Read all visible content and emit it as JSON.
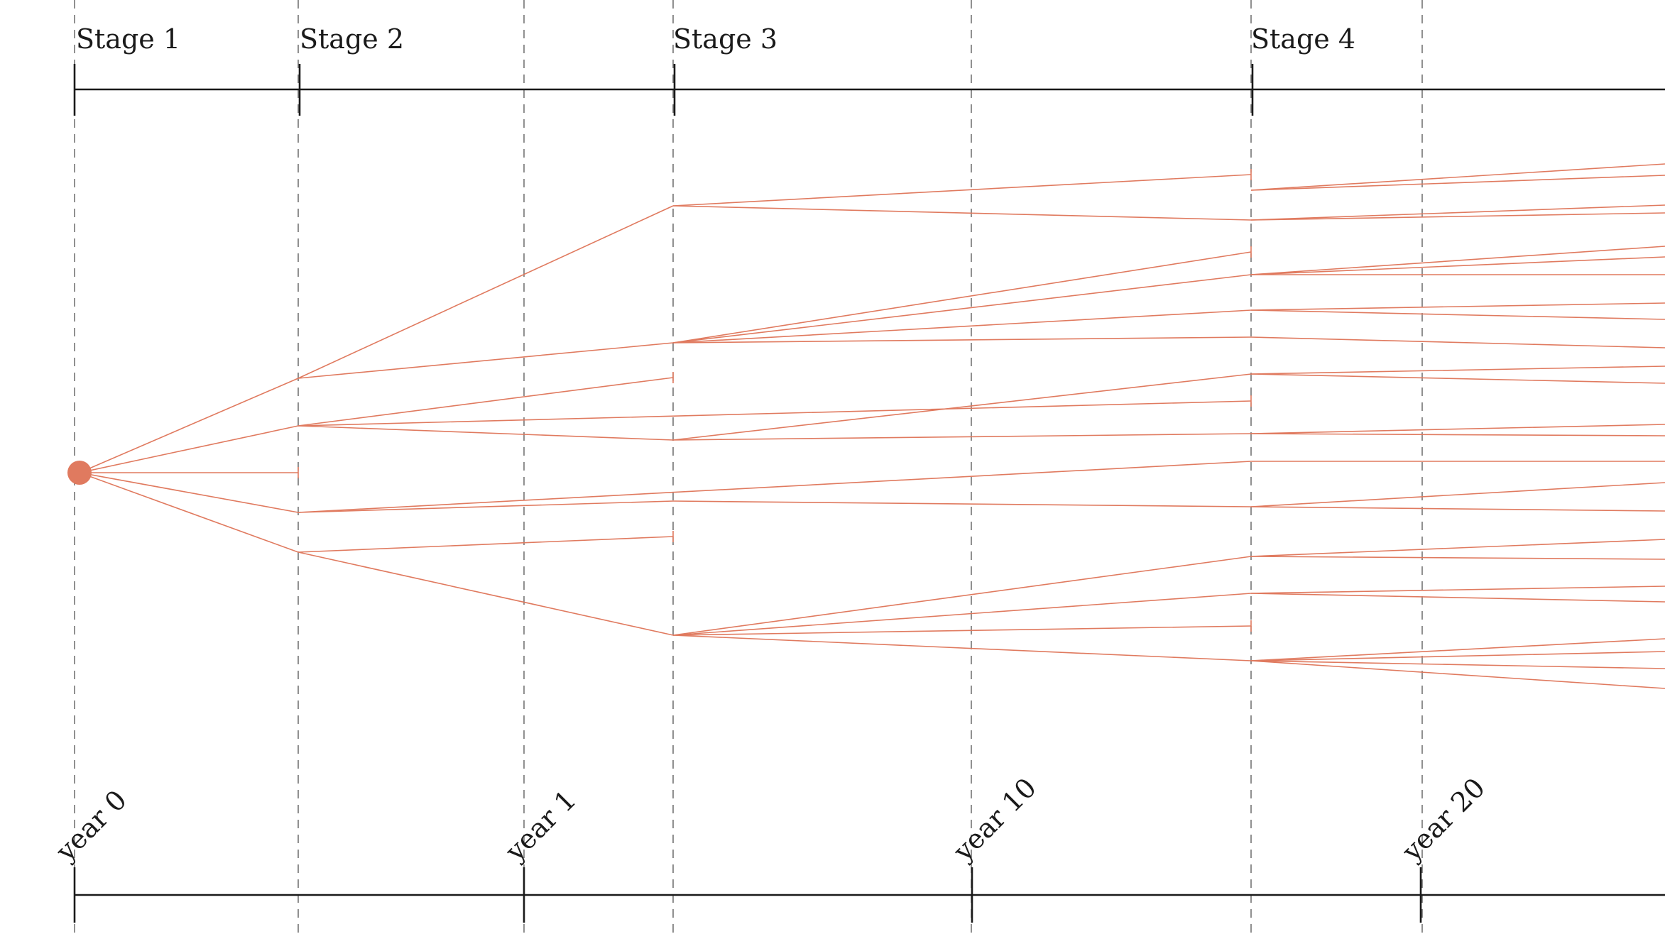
{
  "stages": [
    {
      "id": "stage-1",
      "label": "Stage 1"
    },
    {
      "id": "stage-2",
      "label": "Stage 2"
    },
    {
      "id": "stage-3",
      "label": "Stage 3"
    },
    {
      "id": "stage-4",
      "label": "Stage 4"
    }
  ],
  "years": [
    {
      "id": "year-0",
      "label": "year 0"
    },
    {
      "id": "year-1",
      "label": "year 1"
    },
    {
      "id": "year-10",
      "label": "year 10"
    },
    {
      "id": "year-20",
      "label": "year 20"
    }
  ],
  "colors": {
    "branch": "#e07a5f",
    "axis": "#1a1a1a",
    "guide": "#555555"
  }
}
